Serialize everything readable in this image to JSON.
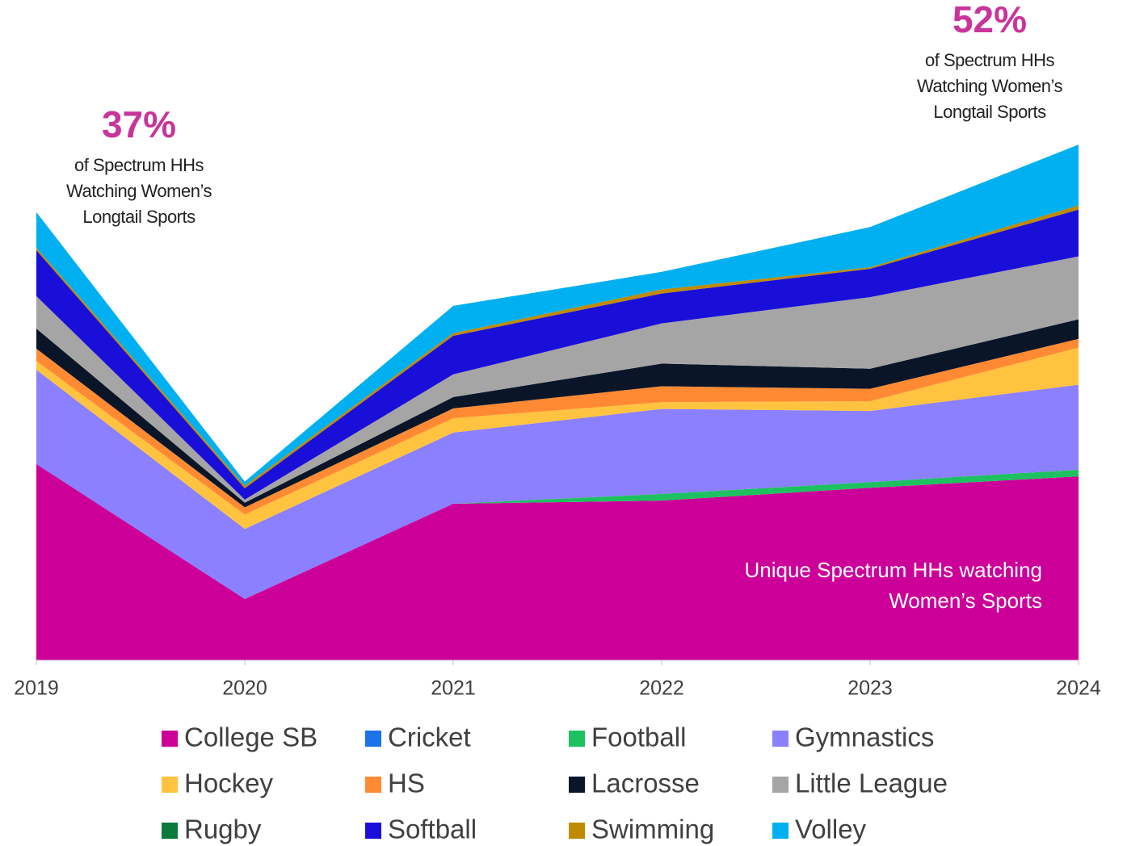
{
  "chart_data": {
    "type": "stacked_area",
    "categories": [
      "2019",
      "2020",
      "2021",
      "2022",
      "2023",
      "2024"
    ],
    "ylim": [
      0,
      110
    ],
    "series": [
      {
        "name": "College SB",
        "color": "#cc0099",
        "values": [
          38.1,
          11.9,
          30.4,
          31.0,
          33.5,
          35.7
        ]
      },
      {
        "name": "Cricket",
        "color": "#1a73e8",
        "values": [
          0,
          0,
          0,
          0,
          0,
          0
        ]
      },
      {
        "name": "Football",
        "color": "#1ec15f",
        "values": [
          0,
          0,
          0,
          1.3,
          1.1,
          1.3
        ]
      },
      {
        "name": "Gymnastics",
        "color": "#8b80ff",
        "values": [
          18.3,
          13.6,
          13.8,
          16.5,
          13.8,
          16.5
        ]
      },
      {
        "name": "Hockey",
        "color": "#ffc340",
        "values": [
          1.7,
          2.8,
          2.8,
          1.3,
          1.9,
          7.2
        ]
      },
      {
        "name": "HS",
        "color": "#ff8a33",
        "values": [
          2.4,
          1.4,
          1.9,
          3.1,
          2.4,
          1.7
        ]
      },
      {
        "name": "Lacrosse",
        "color": "#0a1628",
        "values": [
          3.9,
          0.9,
          2.2,
          4.4,
          3.9,
          3.8
        ]
      },
      {
        "name": "Little League",
        "color": "#a5a5a5",
        "values": [
          6.3,
          0.6,
          4.4,
          7.8,
          13.9,
          12.2
        ]
      },
      {
        "name": "Rugby",
        "color": "#0b7a3a",
        "values": [
          0,
          0,
          0,
          0,
          0,
          0
        ]
      },
      {
        "name": "Softball",
        "color": "#1a0fd9",
        "values": [
          8.9,
          2.2,
          7.5,
          5.8,
          5.5,
          9.1
        ]
      },
      {
        "name": "Swimming",
        "color": "#c08a00",
        "values": [
          0.5,
          0.5,
          0.5,
          0.8,
          0.3,
          0.8
        ]
      },
      {
        "name": "Volley",
        "color": "#00b0f0",
        "values": [
          6.9,
          0.8,
          5.3,
          3.4,
          7.8,
          11.8
        ]
      }
    ],
    "annotations": [
      {
        "value_label": "37%",
        "lines": [
          "of Spectrum HHs",
          "Watching Women’s",
          "Longtail Sports"
        ]
      },
      {
        "value_label": "52%",
        "lines": [
          "of Spectrum HHs",
          "Watching Women’s",
          "Longtail Sports"
        ]
      }
    ],
    "inner_label": [
      "Unique Spectrum  HHs watching",
      "Women’s Sports"
    ]
  }
}
